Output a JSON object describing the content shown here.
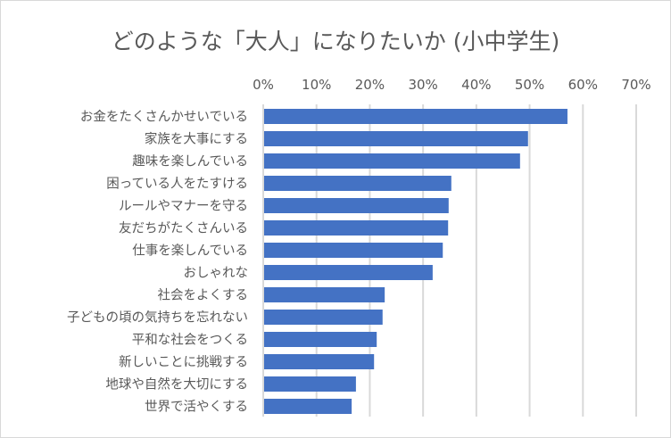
{
  "chart_data": {
    "type": "bar",
    "orientation": "horizontal",
    "title": "どのような「大人」になりたいか (小中学生)",
    "categories": [
      "お金をたくさんかせいでいる",
      "家族を大事にする",
      "趣味を楽しんでいる",
      "困っている人をたすける",
      "ルールやマナーを守る",
      "友だちがたくさんいる",
      "仕事を楽しんでいる",
      "おしゃれな",
      "社会をよくする",
      "子どもの頃の気持ちを忘れない",
      "平和な社会をつくる",
      "新しいことに挑戦する",
      "地球や自然を大切にする",
      "世界で活やくする"
    ],
    "values": [
      57.1,
      49.7,
      48.2,
      35.3,
      34.8,
      34.7,
      33.7,
      31.8,
      22.8,
      22.4,
      21.3,
      20.8,
      17.4,
      16.6
    ],
    "xlim": [
      0,
      70
    ],
    "xticks": [
      "0%",
      "10%",
      "20%",
      "30%",
      "40%",
      "50%",
      "60%",
      "70%"
    ],
    "axis_position": "top",
    "grid": true,
    "legend": "none",
    "bar_color": "#4472C4",
    "grid_color": "#D9D9D9"
  }
}
